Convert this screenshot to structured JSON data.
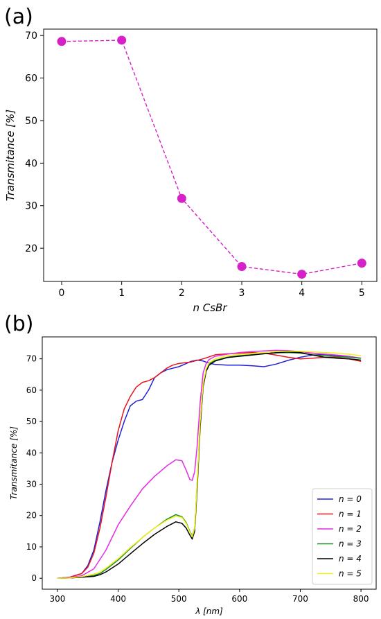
{
  "chart_data": [
    {
      "panel_label": "(a)",
      "type": "scatter",
      "style": "markers with dashed connecting line",
      "color": "#d620c8",
      "x": [
        0,
        1,
        2,
        3,
        4,
        5
      ],
      "y": [
        68.6,
        68.9,
        31.7,
        15.7,
        13.9,
        16.5
      ],
      "xlabel": "n  CsBr",
      "ylabel": "Transmitance  [%]",
      "xlim": [
        -0.3,
        5.25
      ],
      "ylim": [
        12.2,
        71.5
      ],
      "xticks": [
        "0",
        "1",
        "2",
        "3",
        "4",
        "5"
      ],
      "yticks": [
        "20",
        "30",
        "40",
        "50",
        "60",
        "70"
      ],
      "grid": false,
      "legend": false
    },
    {
      "panel_label": "(b)",
      "type": "line",
      "xlabel": "λ [nm]",
      "ylabel": "Transmitance [%]",
      "xlim": [
        275,
        825
      ],
      "ylim": [
        -3.5,
        77
      ],
      "xticks": [
        "300",
        "400",
        "500",
        "600",
        "700",
        "800"
      ],
      "yticks": [
        "0",
        "10",
        "20",
        "30",
        "40",
        "50",
        "60",
        "70"
      ],
      "grid": false,
      "legend_position": "bottom-right",
      "series": [
        {
          "name": "n = 0",
          "color": "#1f1fd6",
          "x": [
            300,
            320,
            340,
            350,
            360,
            370,
            380,
            390,
            400,
            410,
            420,
            430,
            440,
            450,
            460,
            470,
            480,
            490,
            500,
            510,
            520,
            530,
            540,
            550,
            560,
            580,
            600,
            620,
            640,
            660,
            680,
            700,
            720,
            740,
            760,
            780,
            800
          ],
          "y": [
            0,
            0.3,
            1.5,
            4,
            9,
            18,
            28,
            37,
            44,
            50,
            55,
            56.5,
            57,
            60,
            64,
            65.5,
            66.5,
            67,
            67.5,
            68.3,
            69.2,
            69.6,
            69.3,
            68.6,
            68.2,
            68,
            68,
            67.8,
            67.5,
            68.3,
            69.5,
            70.5,
            71.2,
            71.4,
            71,
            70.5,
            70.2
          ]
        },
        {
          "name": "n = 1",
          "color": "#e8131c",
          "x": [
            300,
            320,
            340,
            350,
            360,
            370,
            380,
            390,
            400,
            410,
            420,
            430,
            440,
            450,
            460,
            470,
            480,
            490,
            500,
            520,
            540,
            560,
            580,
            600,
            620,
            640,
            660,
            680,
            700,
            720,
            740,
            760,
            780,
            800
          ],
          "y": [
            0,
            0.3,
            1.5,
            3.5,
            8,
            16,
            26,
            37,
            47,
            54,
            58,
            61,
            62.5,
            63,
            64,
            65.5,
            67,
            68,
            68.5,
            69,
            70,
            71.3,
            71.6,
            71.8,
            72,
            71.8,
            71.2,
            70.5,
            70,
            70.2,
            70.5,
            70.4,
            70,
            69.2
          ]
        },
        {
          "name": "n = 2",
          "color": "#e52ae3",
          "x": [
            300,
            320,
            340,
            360,
            380,
            400,
            420,
            440,
            460,
            480,
            495,
            505,
            512,
            518,
            522,
            526,
            530,
            535,
            540,
            545,
            550,
            560,
            580,
            600,
            620,
            640,
            660,
            680,
            700,
            720,
            740,
            760,
            780,
            800
          ],
          "y": [
            0,
            0.2,
            0.8,
            3,
            9,
            17,
            23,
            28.5,
            32.5,
            35.8,
            37.8,
            37.5,
            34.5,
            31.5,
            31.2,
            34,
            42,
            56,
            65.5,
            68.5,
            69.8,
            70.8,
            71.5,
            72,
            72.3,
            72.5,
            72.7,
            72.6,
            72.3,
            71.8,
            71.5,
            71.2,
            70.8,
            70.2
          ]
        },
        {
          "name": "n = 3",
          "color": "#1e8a22",
          "x": [
            300,
            320,
            340,
            360,
            370,
            380,
            400,
            420,
            440,
            460,
            480,
            495,
            505,
            512,
            518,
            522,
            526,
            530,
            535,
            540,
            545,
            550,
            560,
            580,
            600,
            620,
            640,
            660,
            680,
            700,
            720,
            740,
            760,
            780,
            800
          ],
          "y": [
            0,
            0.1,
            0.3,
            0.9,
            1.5,
            2.8,
            5.8,
            9.5,
            13,
            16,
            18.8,
            20.3,
            19.6,
            17.8,
            15,
            13.5,
            16,
            30,
            50,
            62,
            66.5,
            68.5,
            69.5,
            70.5,
            71,
            71.3,
            71.6,
            71.9,
            72,
            71.8,
            71.3,
            71,
            70.7,
            70.5,
            70.2
          ]
        },
        {
          "name": "n = 4",
          "color": "#000000",
          "x": [
            300,
            320,
            340,
            360,
            370,
            380,
            400,
            420,
            440,
            460,
            480,
            495,
            505,
            512,
            518,
            522,
            526,
            530,
            535,
            540,
            545,
            550,
            560,
            580,
            600,
            620,
            640,
            660,
            680,
            700,
            720,
            740,
            760,
            780,
            800
          ],
          "y": [
            0,
            0.1,
            0.3,
            0.6,
            1.1,
            2,
            4.5,
            7.8,
            11,
            14,
            16.5,
            18,
            17.5,
            16,
            13.8,
            12.5,
            15,
            28,
            48,
            61,
            66,
            68,
            69.3,
            70.4,
            70.8,
            71.2,
            71.6,
            72,
            72.2,
            72,
            71.2,
            70.5,
            70.2,
            70,
            69.6
          ]
        },
        {
          "name": "n = 5",
          "color": "#f2f21a",
          "x": [
            300,
            320,
            340,
            360,
            370,
            380,
            400,
            420,
            440,
            460,
            480,
            495,
            505,
            512,
            518,
            522,
            526,
            530,
            535,
            540,
            545,
            550,
            560,
            580,
            600,
            620,
            640,
            660,
            680,
            700,
            720,
            740,
            760,
            780,
            800
          ],
          "y": [
            0,
            0.1,
            0.5,
            1.3,
            2,
            3.2,
            6.2,
            9.8,
            13,
            16,
            18.5,
            19.8,
            19.4,
            17.5,
            14.8,
            13.2,
            16,
            30,
            50,
            62,
            66.8,
            68.8,
            70,
            71,
            71.4,
            71.7,
            72,
            72.3,
            72.4,
            72.4,
            72.2,
            72,
            71.8,
            71.5,
            71
          ]
        }
      ]
    }
  ]
}
